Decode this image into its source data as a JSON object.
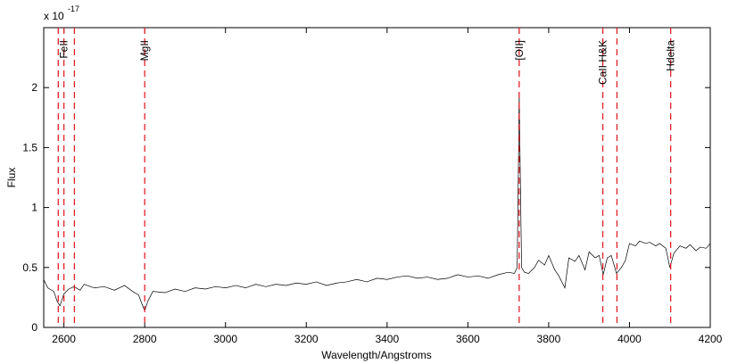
{
  "chart_data": {
    "type": "line",
    "x_label": "Wavelength/Angstroms",
    "y_label": "Flux",
    "y_multiplier": {
      "base": "x 10",
      "exponent": "-17"
    },
    "xlim": [
      2550,
      4200
    ],
    "xticks": [
      2600,
      2800,
      3000,
      3200,
      3400,
      3600,
      3800,
      4000,
      4200
    ],
    "ylim": [
      0,
      2.5
    ],
    "yticks": [
      0,
      0.5,
      1,
      1.5,
      2
    ],
    "series": [
      {
        "color": "#000000",
        "x": [
          2550,
          2560,
          2575,
          2583,
          2590,
          2600,
          2612,
          2625,
          2640,
          2650,
          2675,
          2700,
          2725,
          2750,
          2770,
          2785,
          2795,
          2800,
          2808,
          2820,
          2850,
          2875,
          2900,
          2925,
          2950,
          2975,
          3000,
          3025,
          3050,
          3075,
          3100,
          3125,
          3150,
          3175,
          3200,
          3225,
          3250,
          3275,
          3300,
          3325,
          3350,
          3375,
          3400,
          3425,
          3450,
          3475,
          3500,
          3525,
          3550,
          3575,
          3600,
          3625,
          3650,
          3675,
          3700,
          3715,
          3722,
          3725,
          3727,
          3730,
          3733,
          3740,
          3750,
          3765,
          3775,
          3790,
          3800,
          3815,
          3825,
          3840,
          3850,
          3865,
          3875,
          3890,
          3900,
          3915,
          3925,
          3935,
          3945,
          3955,
          3968,
          3980,
          3990,
          4000,
          4015,
          4025,
          4040,
          4050,
          4065,
          4075,
          4090,
          4100,
          4110,
          4125,
          4140,
          4150,
          4165,
          4175,
          4190,
          4200
        ],
        "values": [
          0.4,
          0.33,
          0.3,
          0.22,
          0.18,
          0.28,
          0.32,
          0.34,
          0.31,
          0.36,
          0.33,
          0.34,
          0.31,
          0.35,
          0.3,
          0.27,
          0.18,
          0.14,
          0.22,
          0.3,
          0.29,
          0.32,
          0.3,
          0.33,
          0.32,
          0.34,
          0.33,
          0.35,
          0.33,
          0.36,
          0.34,
          0.36,
          0.35,
          0.37,
          0.36,
          0.38,
          0.35,
          0.37,
          0.38,
          0.4,
          0.38,
          0.41,
          0.4,
          0.42,
          0.43,
          0.41,
          0.42,
          0.4,
          0.41,
          0.44,
          0.42,
          0.43,
          0.41,
          0.44,
          0.46,
          0.45,
          0.5,
          1.3,
          1.95,
          1.2,
          0.5,
          0.46,
          0.45,
          0.5,
          0.56,
          0.52,
          0.6,
          0.48,
          0.43,
          0.33,
          0.58,
          0.55,
          0.6,
          0.48,
          0.63,
          0.58,
          0.6,
          0.44,
          0.58,
          0.6,
          0.45,
          0.5,
          0.56,
          0.7,
          0.68,
          0.72,
          0.7,
          0.71,
          0.68,
          0.7,
          0.66,
          0.5,
          0.62,
          0.68,
          0.66,
          0.69,
          0.64,
          0.67,
          0.66,
          0.7
        ]
      }
    ],
    "marker_color": "#e0202a",
    "marker_lines": [
      2586,
      2600,
      2626,
      2800,
      3727,
      3934,
      3969,
      4102
    ],
    "marker_labels": [
      {
        "value": 2600,
        "label": "FeII"
      },
      {
        "value": 2800,
        "label": "MgII"
      },
      {
        "value": 3727,
        "label": "[OII]"
      },
      {
        "value": 3934,
        "label": "CaII H&K"
      },
      {
        "value": 4102,
        "label": "Hdelta"
      }
    ]
  }
}
